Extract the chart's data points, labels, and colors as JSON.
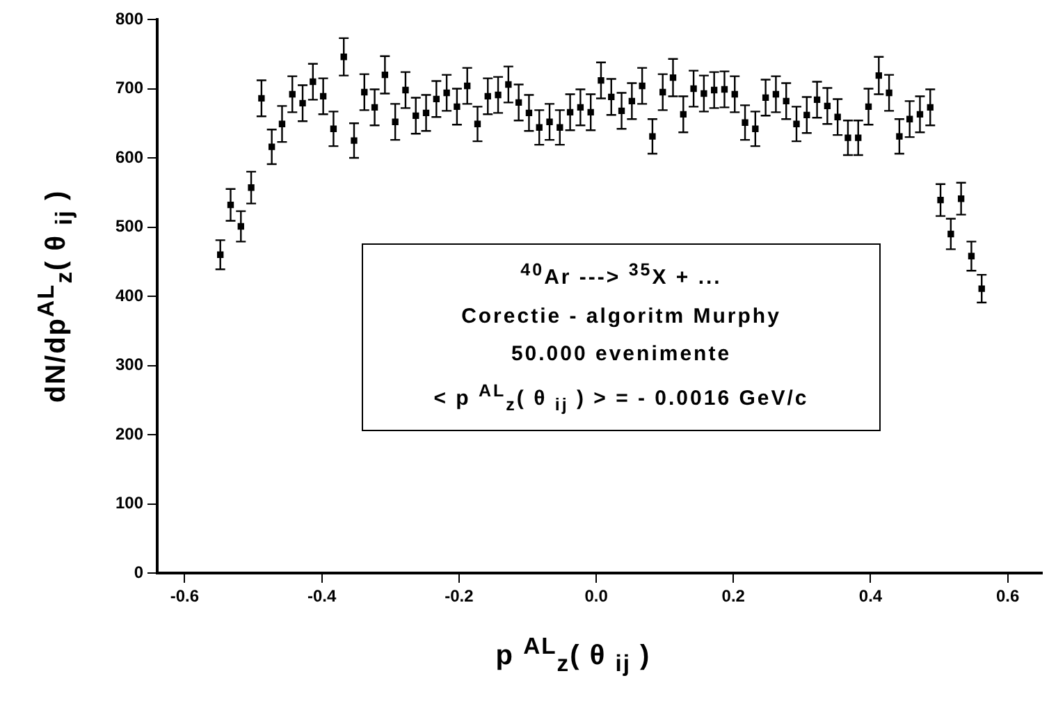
{
  "chart_data": {
    "type": "scatter",
    "xlabel": "p $^{AL}$$_{z}$( θ $_{ij}$ )",
    "ylabel": "dN/dp$^{AL}$$_{z}$( θ $_{ij}$ )",
    "annotations": [
      "$^{40}$Ar ---> $^{35}$X + ...",
      "Corectie - algoritm Murphy",
      "50.000 evenimente",
      "< p $^{AL}$$_{z}$( θ $_{ij}$ ) > = - 0.0016 GeV/c"
    ],
    "x": [
      -0.548,
      -0.533,
      -0.518,
      -0.503,
      -0.488,
      -0.473,
      -0.458,
      -0.443,
      -0.428,
      -0.413,
      -0.398,
      -0.383,
      -0.368,
      -0.353,
      -0.338,
      -0.323,
      -0.308,
      -0.293,
      -0.278,
      -0.263,
      -0.248,
      -0.233,
      -0.218,
      -0.203,
      -0.188,
      -0.173,
      -0.158,
      -0.143,
      -0.128,
      -0.113,
      -0.098,
      -0.083,
      -0.068,
      -0.053,
      -0.038,
      -0.023,
      -0.008,
      0.007,
      0.022,
      0.037,
      0.052,
      0.067,
      0.082,
      0.097,
      0.112,
      0.127,
      0.142,
      0.157,
      0.172,
      0.187,
      0.202,
      0.217,
      0.232,
      0.247,
      0.262,
      0.277,
      0.292,
      0.307,
      0.322,
      0.337,
      0.352,
      0.367,
      0.382,
      0.397,
      0.412,
      0.427,
      0.442,
      0.457,
      0.472,
      0.487,
      0.502,
      0.517,
      0.532,
      0.547,
      0.562
    ],
    "series": [
      {
        "color": "#000000",
        "values": [
          460,
          532,
          501,
          557,
          686,
          616,
          649,
          692,
          679,
          710,
          689,
          642,
          746,
          625,
          695,
          673,
          720,
          652,
          698,
          661,
          665,
          685,
          694,
          674,
          704,
          649,
          689,
          691,
          706,
          680,
          665,
          644,
          652,
          644,
          666,
          673,
          666,
          712,
          688,
          668,
          682,
          704,
          631,
          695,
          716,
          663,
          700,
          693,
          698,
          699,
          692,
          651,
          642,
          687,
          692,
          682,
          649,
          662,
          684,
          675,
          659,
          629,
          629,
          674,
          719,
          694,
          631,
          656,
          663,
          673,
          539,
          490,
          541,
          458,
          411
        ],
        "errors": [
          21,
          23,
          22,
          23,
          26,
          25,
          26,
          26,
          26,
          26,
          26,
          25,
          27,
          25,
          26,
          26,
          27,
          26,
          26,
          26,
          26,
          26,
          26,
          26,
          26,
          25,
          26,
          26,
          26,
          26,
          26,
          25,
          26,
          25,
          26,
          26,
          26,
          26,
          26,
          26,
          26,
          26,
          25,
          26,
          27,
          26,
          26,
          26,
          26,
          26,
          26,
          25,
          25,
          26,
          26,
          26,
          25,
          26,
          26,
          26,
          26,
          25,
          25,
          26,
          27,
          26,
          25,
          26,
          26,
          26,
          23,
          22,
          23,
          21,
          20
        ]
      }
    ],
    "xlim": [
      -0.64,
      0.65
    ],
    "ylim": [
      0,
      800
    ],
    "xticks": [
      -0.6,
      -0.4,
      -0.2,
      {
        "value": 0,
        "label": "0.0"
      },
      0.2,
      0.4,
      0.6
    ],
    "yticks": [
      0,
      100,
      200,
      300,
      400,
      500,
      600,
      700,
      800
    ],
    "grid": false,
    "legend": false,
    "marker": "square"
  }
}
